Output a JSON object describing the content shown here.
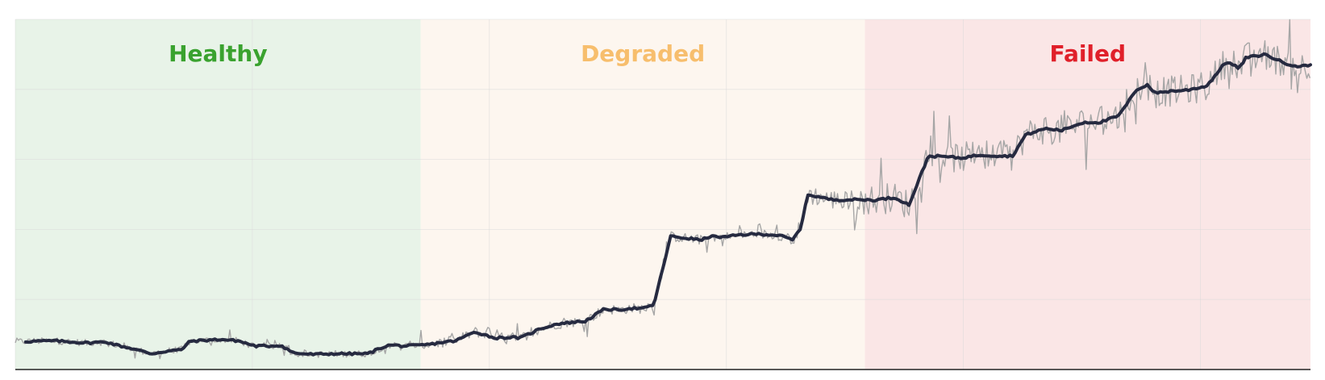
{
  "chart_data": {
    "type": "line",
    "title": "",
    "xlabel": "",
    "ylabel": "",
    "xlim": [
      0,
      1000
    ],
    "ylim": [
      0,
      100
    ],
    "grid": true,
    "colors": {
      "raw_series": "#a6a6a6",
      "smoothed_series": "#262a40",
      "axis": "#222222",
      "grid": "#d9d9d9"
    },
    "regions": [
      {
        "label": "Healthy",
        "x_start": 0,
        "x_end": 313,
        "fill": "#e8f3e8",
        "label_color": "#3aa22f"
      },
      {
        "label": "Degraded",
        "x_start": 313,
        "x_end": 656,
        "fill": "#fdf6ef",
        "label_color": "#f7be6d"
      },
      {
        "label": "Failed",
        "x_start": 656,
        "x_end": 1000,
        "fill": "#fae6e6",
        "label_color": "#e0202a"
      }
    ],
    "series": [
      {
        "role": "smoothed",
        "x": [
          8,
          30,
          55,
          70,
          78,
          90,
          105,
          118,
          128,
          135,
          145,
          158,
          172,
          185,
          195,
          205,
          215,
          230,
          245,
          260,
          272,
          285,
          290,
          300,
          313,
          322,
          328,
          340,
          355,
          370,
          383,
          390,
          405,
          418,
          430,
          440,
          455,
          465,
          475,
          485,
          493,
          506,
          518,
          530,
          536,
          548,
          560,
          575,
          590,
          600,
          606,
          612,
          630,
          650,
          665,
          673,
          680,
          690,
          705,
          718,
          730,
          740,
          745,
          760,
          770,
          780,
          795,
          808,
          815,
          825,
          838,
          852,
          866,
          874,
          880,
          892,
          905,
          920,
          935,
          945,
          950,
          965,
          980,
          992,
          1000
        ],
        "y": [
          8.0,
          8.2,
          7.6,
          7.9,
          7.0,
          6.0,
          4.5,
          5.3,
          5.6,
          8.1,
          8.3,
          8.6,
          8.2,
          6.7,
          6.7,
          6.9,
          4.7,
          4.3,
          4.5,
          4.5,
          4.5,
          6.6,
          7.0,
          6.7,
          6.9,
          7.3,
          7.7,
          8.2,
          10.8,
          9.0,
          9.2,
          9.0,
          11.6,
          13.0,
          13.5,
          13.8,
          17.3,
          17.0,
          17.5,
          17.4,
          18.5,
          38.0,
          37.5,
          37.0,
          38.0,
          37.8,
          38.5,
          38.7,
          38.3,
          37.0,
          40.0,
          50.0,
          48.5,
          48.5,
          48.4,
          48.9,
          49.0,
          47.0,
          61.0,
          60.8,
          60.4,
          61.0,
          61.3,
          61.0,
          61.0,
          67.0,
          68.8,
          68.3,
          69.3,
          70.6,
          70.6,
          72.5,
          80.0,
          81.3,
          79.0,
          79.5,
          79.8,
          81.0,
          88.0,
          86.0,
          89.0,
          90.0,
          87.5,
          86.5,
          87.0
        ]
      }
    ]
  }
}
